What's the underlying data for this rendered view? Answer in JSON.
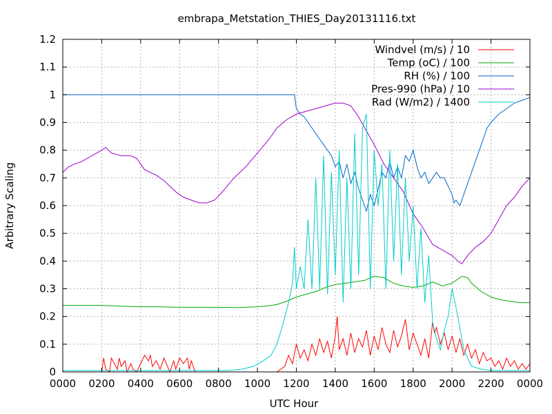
{
  "chart_data": {
    "type": "line",
    "title": "embrapa_Metstation_THIES_Day20131116.txt",
    "xlabel": "UTC Hour",
    "ylabel": "Arbitrary Scaling",
    "xlim": [
      0,
      24
    ],
    "ylim": [
      0,
      1.2
    ],
    "grid": true,
    "legend_position": "top-right",
    "xticks": [
      0,
      2,
      4,
      6,
      8,
      10,
      12,
      14,
      16,
      18,
      20,
      22,
      24
    ],
    "xtick_labels": [
      "0000",
      "0200",
      "0400",
      "0600",
      "0800",
      "1000",
      "1200",
      "1400",
      "1600",
      "1800",
      "2000",
      "2200",
      "0000"
    ],
    "yticks": [
      0,
      0.1,
      0.2,
      0.3,
      0.4,
      0.5,
      0.6,
      0.7,
      0.8,
      0.9,
      1.0,
      1.1,
      1.2
    ],
    "ytick_labels": [
      "0",
      "0.1",
      "0.2",
      "0.3",
      "0.4",
      "0.5",
      "0.6",
      "0.7",
      "0.8",
      "0.9",
      "1",
      "1.1",
      "1.2"
    ],
    "series": [
      {
        "name": "Windvel (m/s) / 10",
        "color": "#ff0000",
        "x": [
          0,
          2,
          2.1,
          2.2,
          2.4,
          2.5,
          2.8,
          2.9,
          3.0,
          3.2,
          3.3,
          3.5,
          3.6,
          3.8,
          4.0,
          4.2,
          4.4,
          4.5,
          4.6,
          4.8,
          5.0,
          5.2,
          5.5,
          5.7,
          5.8,
          6.0,
          6.2,
          6.4,
          6.5,
          6.6,
          6.8,
          7.0,
          11.0,
          11.4,
          11.6,
          11.8,
          12.0,
          12.2,
          12.4,
          12.6,
          12.8,
          13.0,
          13.2,
          13.4,
          13.6,
          13.8,
          14.0,
          14.1,
          14.2,
          14.4,
          14.6,
          14.8,
          15.0,
          15.2,
          15.4,
          15.6,
          15.8,
          16.0,
          16.2,
          16.4,
          16.6,
          16.8,
          17.0,
          17.2,
          17.4,
          17.6,
          17.8,
          18.0,
          18.2,
          18.4,
          18.6,
          18.8,
          19.0,
          19.1,
          19.2,
          19.4,
          19.6,
          19.8,
          20.0,
          20.2,
          20.4,
          20.6,
          20.8,
          21.0,
          21.2,
          21.4,
          21.6,
          21.8,
          22.0,
          22.2,
          22.4,
          22.6,
          22.8,
          23.0,
          23.2,
          23.4,
          23.6,
          23.8,
          24.0
        ],
        "y": [
          0,
          0,
          0.05,
          0.01,
          0,
          0.05,
          0.01,
          0.05,
          0.02,
          0.04,
          0,
          0.03,
          0.01,
          0,
          0.03,
          0.06,
          0.04,
          0.06,
          0.02,
          0.04,
          0.01,
          0.05,
          0,
          0.04,
          0.01,
          0.05,
          0.03,
          0.05,
          0.01,
          0.04,
          0,
          0,
          0,
          0.02,
          0.06,
          0.03,
          0.1,
          0.05,
          0.08,
          0.04,
          0.1,
          0.06,
          0.12,
          0.07,
          0.11,
          0.05,
          0.13,
          0.2,
          0.08,
          0.12,
          0.06,
          0.14,
          0.07,
          0.12,
          0.09,
          0.15,
          0.06,
          0.13,
          0.08,
          0.16,
          0.1,
          0.07,
          0.15,
          0.09,
          0.13,
          0.19,
          0.08,
          0.14,
          0.1,
          0.06,
          0.12,
          0.05,
          0.18,
          0.14,
          0.16,
          0.1,
          0.14,
          0.08,
          0.13,
          0.07,
          0.12,
          0.06,
          0.1,
          0.05,
          0.08,
          0.03,
          0.07,
          0.04,
          0.05,
          0.02,
          0.04,
          0.01,
          0.05,
          0.02,
          0.04,
          0.01,
          0.03,
          0.01,
          0.03
        ]
      },
      {
        "name": "Temp (oC) / 100",
        "color": "#00aa00",
        "x": [
          0,
          1,
          2,
          3,
          4,
          5,
          6,
          7,
          8,
          9,
          10,
          10.5,
          11,
          11.5,
          12,
          12.5,
          13,
          13.5,
          14,
          14.5,
          15,
          15.5,
          16,
          16.5,
          17,
          17.5,
          18,
          18.5,
          19,
          19.5,
          20,
          20.3,
          20.5,
          20.8,
          21,
          21.5,
          22,
          22.5,
          23,
          23.5,
          24
        ],
        "y": [
          0.24,
          0.24,
          0.24,
          0.237,
          0.235,
          0.235,
          0.233,
          0.233,
          0.233,
          0.232,
          0.235,
          0.238,
          0.243,
          0.255,
          0.27,
          0.28,
          0.29,
          0.305,
          0.315,
          0.32,
          0.325,
          0.33,
          0.345,
          0.34,
          0.32,
          0.31,
          0.305,
          0.31,
          0.325,
          0.31,
          0.32,
          0.335,
          0.345,
          0.34,
          0.32,
          0.29,
          0.27,
          0.26,
          0.255,
          0.25,
          0.25
        ]
      },
      {
        "name": "RH (%) / 100",
        "color": "#0066cc",
        "x": [
          0,
          11.9,
          12.0,
          12.2,
          12.4,
          12.6,
          12.8,
          13.0,
          13.2,
          13.4,
          13.6,
          13.8,
          14.0,
          14.2,
          14.4,
          14.6,
          14.8,
          15.0,
          15.2,
          15.4,
          15.6,
          15.8,
          16.0,
          16.2,
          16.4,
          16.6,
          16.8,
          17.0,
          17.2,
          17.4,
          17.6,
          17.8,
          18.0,
          18.2,
          18.4,
          18.6,
          18.8,
          19.0,
          19.2,
          19.4,
          19.6,
          19.8,
          20.0,
          20.1,
          20.2,
          20.4,
          20.6,
          20.8,
          21.0,
          21.2,
          21.4,
          21.6,
          21.8,
          22.0,
          22.4,
          22.8,
          23.2,
          23.6,
          24.0
        ],
        "y": [
          1.0,
          1.0,
          0.95,
          0.93,
          0.92,
          0.9,
          0.88,
          0.86,
          0.84,
          0.82,
          0.8,
          0.78,
          0.74,
          0.76,
          0.7,
          0.75,
          0.68,
          0.72,
          0.66,
          0.62,
          0.58,
          0.64,
          0.6,
          0.66,
          0.72,
          0.7,
          0.76,
          0.7,
          0.74,
          0.7,
          0.78,
          0.76,
          0.8,
          0.74,
          0.7,
          0.72,
          0.68,
          0.7,
          0.72,
          0.7,
          0.7,
          0.67,
          0.64,
          0.61,
          0.62,
          0.6,
          0.64,
          0.68,
          0.72,
          0.76,
          0.8,
          0.84,
          0.88,
          0.9,
          0.93,
          0.95,
          0.97,
          0.98,
          0.99
        ]
      },
      {
        "name": "Pres-990 (hPa) / 10",
        "color": "#9900cc",
        "x": [
          0,
          0.3,
          0.6,
          1.0,
          1.5,
          2.0,
          2.2,
          2.5,
          3.0,
          3.5,
          3.8,
          4.2,
          4.8,
          5.2,
          5.8,
          6.2,
          6.6,
          7.0,
          7.4,
          7.8,
          8.2,
          8.8,
          9.4,
          10.0,
          10.6,
          11.0,
          11.5,
          12.0,
          12.5,
          13.0,
          13.5,
          14.0,
          14.4,
          14.8,
          15.2,
          15.6,
          16.0,
          16.5,
          17.0,
          17.5,
          18.0,
          18.5,
          19.0,
          19.5,
          20.0,
          20.3,
          20.5,
          20.8,
          21.2,
          21.6,
          22.0,
          22.4,
          22.8,
          23.2,
          23.6,
          24.0
        ],
        "y": [
          0.72,
          0.74,
          0.75,
          0.76,
          0.78,
          0.8,
          0.81,
          0.79,
          0.78,
          0.78,
          0.77,
          0.73,
          0.71,
          0.69,
          0.65,
          0.63,
          0.62,
          0.61,
          0.61,
          0.62,
          0.65,
          0.7,
          0.74,
          0.79,
          0.84,
          0.88,
          0.91,
          0.93,
          0.94,
          0.95,
          0.96,
          0.97,
          0.97,
          0.96,
          0.92,
          0.87,
          0.82,
          0.75,
          0.7,
          0.65,
          0.57,
          0.52,
          0.46,
          0.44,
          0.42,
          0.4,
          0.39,
          0.42,
          0.45,
          0.47,
          0.5,
          0.55,
          0.6,
          0.63,
          0.67,
          0.7
        ]
      },
      {
        "name": "Rad (W/m2) / 1400",
        "color": "#00cccc",
        "x": [
          0,
          8.5,
          9.2,
          9.8,
          10.3,
          10.7,
          11.0,
          11.3,
          11.6,
          11.8,
          11.9,
          12.0,
          12.2,
          12.4,
          12.6,
          12.8,
          13.0,
          13.2,
          13.4,
          13.6,
          13.8,
          14.0,
          14.2,
          14.4,
          14.6,
          14.8,
          15.0,
          15.2,
          15.4,
          15.6,
          15.8,
          16.0,
          16.2,
          16.4,
          16.6,
          16.8,
          17.0,
          17.2,
          17.4,
          17.6,
          17.8,
          18.0,
          18.2,
          18.4,
          18.6,
          18.8,
          19.0,
          19.2,
          19.4,
          19.6,
          19.8,
          20.0,
          20.3,
          20.6,
          21.0,
          21.5,
          22.0,
          24.0
        ],
        "y": [
          0.005,
          0.005,
          0.01,
          0.02,
          0.04,
          0.06,
          0.1,
          0.17,
          0.25,
          0.32,
          0.45,
          0.3,
          0.38,
          0.3,
          0.55,
          0.3,
          0.7,
          0.3,
          0.78,
          0.28,
          0.72,
          0.35,
          0.8,
          0.25,
          0.7,
          0.3,
          0.86,
          0.35,
          0.88,
          0.93,
          0.3,
          0.8,
          0.6,
          0.75,
          0.3,
          0.8,
          0.4,
          0.75,
          0.35,
          0.7,
          0.4,
          0.6,
          0.3,
          0.52,
          0.25,
          0.42,
          0.18,
          0.12,
          0.08,
          0.15,
          0.2,
          0.3,
          0.2,
          0.08,
          0.02,
          0.01,
          0.005,
          0.005
        ]
      }
    ]
  }
}
